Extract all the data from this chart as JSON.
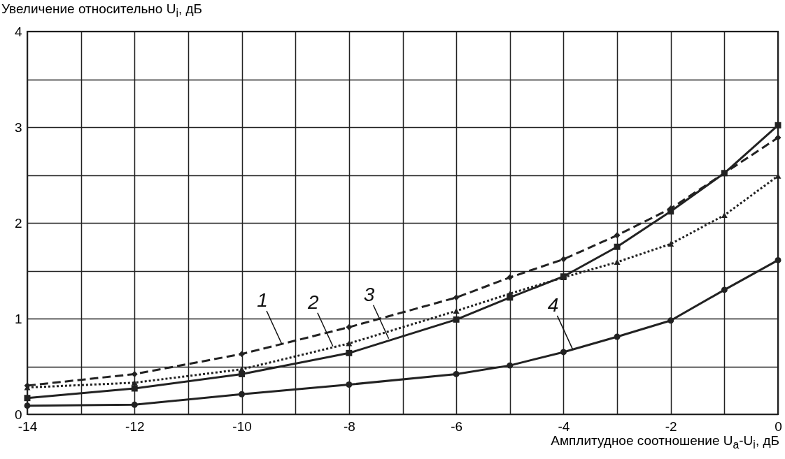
{
  "chart_data": {
    "type": "line",
    "xlabel": "Амплитудное соотношение U$_{a}$-U$_{i}$, дБ",
    "ylabel": "Увеличение относительно U$_{i}$, дБ",
    "x": [
      -14,
      -12,
      -10,
      -8,
      -6,
      -5,
      -4,
      -3,
      -2,
      -1,
      0
    ],
    "series": [
      {
        "color": "#222222",
        "marker": "diamond",
        "line_style": "dashed",
        "values": [
          0.3,
          0.42,
          0.63,
          0.91,
          1.22,
          1.43,
          1.62,
          1.87,
          2.15,
          2.52,
          2.89
        ]
      },
      {
        "color": "#222222",
        "marker": "triangle",
        "line_style": "dotted",
        "values": [
          0.28,
          0.33,
          0.47,
          0.74,
          1.08,
          1.26,
          1.43,
          1.59,
          1.78,
          2.08,
          2.49
        ]
      },
      {
        "color": "#222222",
        "marker": "square",
        "line_style": "solid",
        "values": [
          0.17,
          0.27,
          0.42,
          0.64,
          0.99,
          1.22,
          1.44,
          1.75,
          2.12,
          2.52,
          3.02
        ]
      },
      {
        "color": "#222222",
        "marker": "circle",
        "line_style": "solid",
        "values": [
          0.09,
          0.1,
          0.21,
          0.31,
          0.42,
          0.51,
          0.65,
          0.81,
          0.98,
          1.3,
          1.61
        ]
      }
    ],
    "xlim": [
      -14,
      0
    ],
    "xticks": [
      -14,
      {
        "value": -13,
        "label": null
      },
      -12,
      {
        "value": -11,
        "label": null
      },
      -10,
      {
        "value": -9,
        "label": null
      },
      -8,
      {
        "value": -7,
        "label": null
      },
      -6,
      {
        "value": -5,
        "label": null
      },
      -4,
      {
        "value": -3,
        "label": null
      },
      -2,
      {
        "value": -1,
        "label": null
      },
      0
    ],
    "ylim": [
      0,
      4
    ],
    "yticks": [
      0,
      {
        "value": 0.5,
        "label": null
      },
      1,
      {
        "value": 1.5,
        "label": null
      },
      2,
      {
        "value": 2.5,
        "label": null
      },
      3,
      {
        "value": 3.5,
        "label": null
      },
      4
    ],
    "grid": true,
    "annotations": [
      {
        "text": "1",
        "x": -9.25,
        "y": 0.73
      },
      {
        "text": "2",
        "x": -8.3,
        "y": 0.71
      },
      {
        "text": "3",
        "x": -7.26,
        "y": 0.79
      },
      {
        "text": "4",
        "x": -3.83,
        "y": 0.68
      }
    ]
  }
}
